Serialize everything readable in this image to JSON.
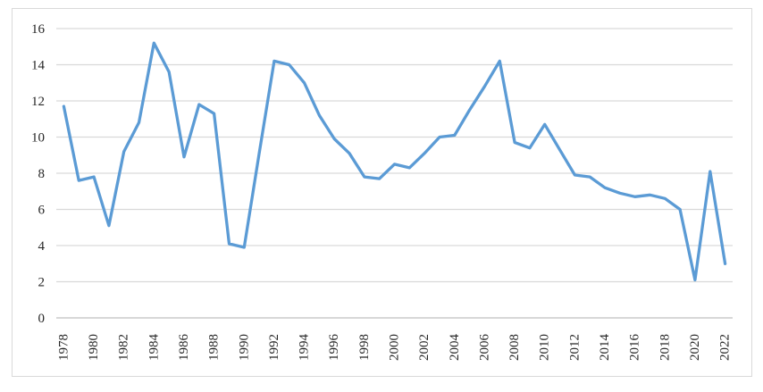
{
  "chart_data": {
    "type": "line",
    "title": "",
    "xlabel": "",
    "ylabel": "",
    "x": [
      1978,
      1979,
      1980,
      1981,
      1982,
      1983,
      1984,
      1985,
      1986,
      1987,
      1988,
      1989,
      1990,
      1991,
      1992,
      1993,
      1994,
      1995,
      1996,
      1997,
      1998,
      1999,
      2000,
      2001,
      2002,
      2003,
      2004,
      2005,
      2006,
      2007,
      2008,
      2009,
      2010,
      2011,
      2012,
      2013,
      2014,
      2015,
      2016,
      2017,
      2018,
      2019,
      2020,
      2021,
      2022
    ],
    "series": [
      {
        "name": "",
        "values": [
          11.7,
          7.6,
          7.8,
          5.1,
          9.2,
          10.8,
          15.2,
          13.6,
          8.9,
          11.8,
          11.3,
          4.1,
          3.9,
          9.1,
          14.2,
          14.0,
          13.0,
          11.2,
          9.9,
          9.1,
          7.8,
          7.7,
          8.5,
          8.3,
          9.1,
          10.0,
          10.1,
          11.5,
          12.8,
          14.2,
          9.7,
          9.4,
          10.7,
          9.3,
          7.9,
          7.8,
          7.2,
          6.9,
          6.7,
          6.8,
          6.6,
          6.0,
          2.1,
          8.1,
          3.0
        ]
      }
    ],
    "ylim": [
      0,
      16
    ],
    "ytick_step": 2,
    "ytick_labels": [
      "0",
      "2",
      "4",
      "6",
      "8",
      "10",
      "12",
      "14",
      "16"
    ],
    "xtick_labels": [
      "1978",
      "1980",
      "1982",
      "1984",
      "1986",
      "1988",
      "1990",
      "1992",
      "1994",
      "1996",
      "1998",
      "2000",
      "2002",
      "2004",
      "2006",
      "2008",
      "2010",
      "2012",
      "2014",
      "2016",
      "2018",
      "2020",
      "2022"
    ],
    "xtick_rotation_deg": -90,
    "grid": true,
    "legend_position": "none",
    "line_color": "#5B9BD5",
    "gridline_color": "#D9D9D9",
    "axis_line_color": "#BFBFBF",
    "tick_label_color": "#262626",
    "chart_border_color": "#D9D9D9",
    "background_color": "#FFFFFF"
  }
}
